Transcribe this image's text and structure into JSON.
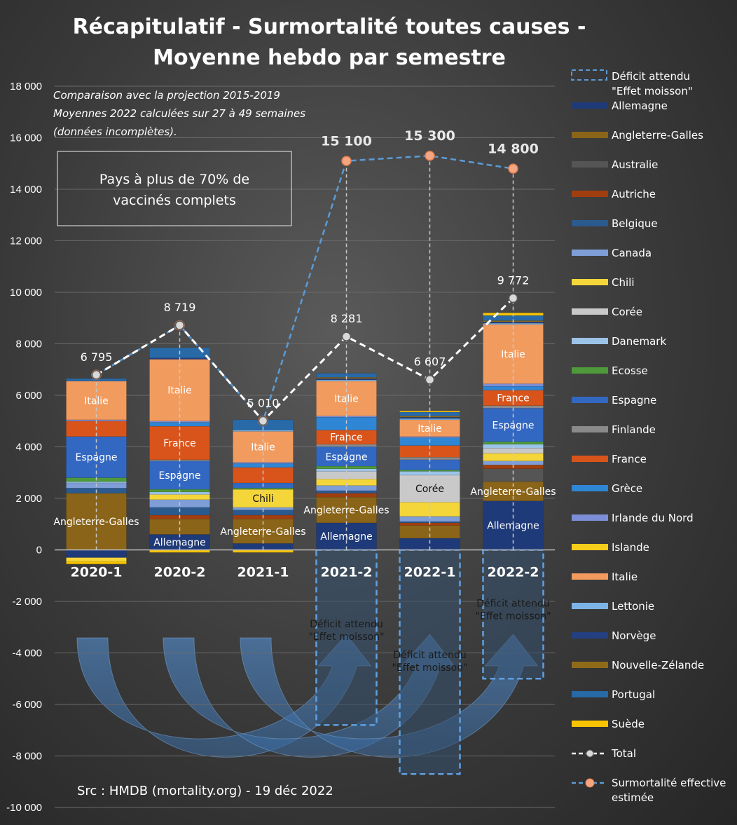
{
  "chart_data": {
    "type": "bar",
    "title": [
      "Récapitulatif - Surmortalité toutes causes -",
      "Moyenne hebdo par semestre"
    ],
    "note": [
      "Comparaison avec la projection 2015-2019",
      "Moyennes 2022 calculées sur 27 à 49 semaines",
      "(données incomplètes)."
    ],
    "box_text": [
      "Pays à plus de 70% de",
      "vaccinés complets"
    ],
    "source": "Src : HMDB (mortality.org) - 19 déc 2022",
    "ylim": [
      -10000,
      18000
    ],
    "yticks": [
      {
        "value": 18000,
        "label": "18 000"
      },
      {
        "value": 16000,
        "label": "16 000"
      },
      {
        "value": 14000,
        "label": "14 000"
      },
      {
        "value": 12000,
        "label": "12 000"
      },
      {
        "value": 10000,
        "label": "10 000"
      },
      {
        "value": 8000,
        "label": "8 000"
      },
      {
        "value": 6000,
        "label": "6 000"
      },
      {
        "value": 4000,
        "label": "4 000"
      },
      {
        "value": 2000,
        "label": "2 000"
      },
      {
        "value": 0,
        "label": "0"
      },
      {
        "value": -2000,
        "label": "-2 000"
      },
      {
        "value": -4000,
        "label": "-4 000"
      },
      {
        "value": -6000,
        "label": "-6 000"
      },
      {
        "value": -8000,
        "label": "-8 000"
      },
      {
        "value": -10000,
        "label": "-10 000"
      }
    ],
    "categories": [
      "2020-1",
      "2020-2",
      "2021-1",
      "2021-2",
      "2022-1",
      "2022-2"
    ],
    "colors": {
      "Allemagne": "#1f3a78",
      "Angleterre-Galles": "#8a6418",
      "Australie": "#555555",
      "Autriche": "#a13e0f",
      "Belgique": "#2b5a8f",
      "Canada": "#7f9ed8",
      "Chili": "#f5d63a",
      "Corée": "#c9c9c9",
      "Danemark": "#9cc3e8",
      "Ecosse": "#4e9a3a",
      "Espagne": "#3368c2",
      "Finlande": "#8a8a8a",
      "France": "#d9541a",
      "Grèce": "#2e86d4",
      "Irlande du Nord": "#7c8fd6",
      "Islande": "#f6cd1a",
      "Italie": "#f29b5e",
      "Lettonie": "#7cb4e6",
      "Norvège": "#243f82",
      "Nouvelle-Zélande": "#8f6a18",
      "Portugal": "#2869a8",
      "Suède": "#f8c400"
    },
    "series": [
      {
        "name": "Allemagne",
        "values": [
          -300,
          600,
          250,
          1050,
          450,
          1900
        ]
      },
      {
        "name": "Angleterre-Galles",
        "values": [
          2200,
          600,
          950,
          1000,
          500,
          750
        ]
      },
      {
        "name": "Australie",
        "values": [
          0,
          0,
          0,
          0,
          0,
          500
        ]
      },
      {
        "name": "Autriche",
        "values": [
          0,
          150,
          150,
          150,
          100,
          150
        ]
      },
      {
        "name": "Belgique",
        "values": [
          200,
          300,
          200,
          100,
          50,
          0
        ]
      },
      {
        "name": "Canada",
        "values": [
          200,
          300,
          100,
          200,
          200,
          150
        ]
      },
      {
        "name": "Chili",
        "values": [
          -150,
          200,
          700,
          250,
          550,
          300
        ]
      },
      {
        "name": "Corée",
        "values": [
          0,
          0,
          0,
          300,
          1050,
          200
        ]
      },
      {
        "name": "Danemark",
        "values": [
          50,
          100,
          0,
          100,
          150,
          150
        ]
      },
      {
        "name": "Ecosse",
        "values": [
          150,
          100,
          50,
          100,
          50,
          100
        ]
      },
      {
        "name": "Espagne",
        "values": [
          1600,
          1100,
          200,
          750,
          400,
          1300
        ]
      },
      {
        "name": "Finlande",
        "values": [
          0,
          50,
          0,
          100,
          100,
          100
        ]
      },
      {
        "name": "France",
        "values": [
          600,
          1300,
          600,
          550,
          450,
          600
        ]
      },
      {
        "name": "Grèce",
        "values": [
          0,
          150,
          150,
          500,
          300,
          150
        ]
      },
      {
        "name": "Irlande du Nord",
        "values": [
          50,
          50,
          50,
          50,
          50,
          100
        ]
      },
      {
        "name": "Islande",
        "values": [
          0,
          0,
          0,
          0,
          0,
          0
        ]
      },
      {
        "name": "Italie",
        "values": [
          1500,
          2400,
          1200,
          1350,
          650,
          2300
        ]
      },
      {
        "name": "Lettonie",
        "values": [
          0,
          0,
          50,
          50,
          50,
          50
        ]
      },
      {
        "name": "Norvège",
        "values": [
          0,
          50,
          0,
          50,
          50,
          50
        ]
      },
      {
        "name": "Nouvelle-Zélande",
        "values": [
          0,
          0,
          0,
          50,
          50,
          50
        ]
      },
      {
        "name": "Portugal",
        "values": [
          100,
          400,
          400,
          150,
          150,
          200
        ]
      },
      {
        "name": "Suède",
        "values": [
          -100,
          -100,
          -100,
          0,
          50,
          100
        ]
      }
    ],
    "segment_labels": [
      {
        "cat": 0,
        "series": "Angleterre-Galles",
        "text": "Angleterre-Galles"
      },
      {
        "cat": 0,
        "series": "Espagne",
        "text": "Espagne"
      },
      {
        "cat": 0,
        "series": "Italie",
        "text": "Italie"
      },
      {
        "cat": 1,
        "series": "Allemagne",
        "text": "Allemagne"
      },
      {
        "cat": 1,
        "series": "Espagne",
        "text": "Espagne"
      },
      {
        "cat": 1,
        "series": "France",
        "text": "France"
      },
      {
        "cat": 1,
        "series": "Italie",
        "text": "Italie"
      },
      {
        "cat": 2,
        "series": "Angleterre-Galles",
        "text": "Angleterre-Galles"
      },
      {
        "cat": 2,
        "series": "Chili",
        "text": "Chili"
      },
      {
        "cat": 2,
        "series": "Italie",
        "text": "Italie"
      },
      {
        "cat": 3,
        "series": "Allemagne",
        "text": "Allemagne"
      },
      {
        "cat": 3,
        "series": "Angleterre-Galles",
        "text": "Angleterre-Galles"
      },
      {
        "cat": 3,
        "series": "Espagne",
        "text": "Espagne"
      },
      {
        "cat": 3,
        "series": "France",
        "text": "France"
      },
      {
        "cat": 3,
        "series": "Italie",
        "text": "Italie"
      },
      {
        "cat": 4,
        "series": "Corée",
        "text": "Corée"
      },
      {
        "cat": 4,
        "series": "Italie",
        "text": "Italie"
      },
      {
        "cat": 5,
        "series": "Allemagne",
        "text": "Allemagne"
      },
      {
        "cat": 5,
        "series": "Angleterre-Galles",
        "text": "Angleterre-Galles"
      },
      {
        "cat": 5,
        "series": "Espagne",
        "text": "Espagne"
      },
      {
        "cat": 5,
        "series": "France",
        "text": "France"
      },
      {
        "cat": 5,
        "series": "Italie",
        "text": "Italie"
      }
    ],
    "deficit": {
      "name": "Déficit attendu \"Effet moisson\"",
      "values": [
        null,
        null,
        null,
        -6800,
        -8700,
        -5000
      ],
      "label": [
        "Déficit attendu",
        "\"Effet moisson\""
      ],
      "label_values": [
        null,
        null,
        null,
        -3000,
        -4200,
        -2200
      ]
    },
    "total": {
      "name": "Total",
      "values": [
        6795,
        8719,
        5010,
        8281,
        6607,
        9772
      ],
      "labels": [
        "6 795",
        "8 719",
        "5 010",
        "8 281",
        "6 607",
        "9 772"
      ]
    },
    "effective": {
      "name": "Surmortalité effective estimée",
      "values": [
        6795,
        8719,
        5010,
        15100,
        15300,
        14800
      ],
      "labels": [
        null,
        null,
        null,
        "15 100",
        "15 300",
        "14 800"
      ]
    },
    "legend": [
      {
        "name": "Déficit attendu \"Effet moisson\"",
        "lines": [
          "Déficit attendu",
          "\"Effet moisson\""
        ],
        "kind": "deficit"
      },
      {
        "name": "Allemagne",
        "lines": [
          "Allemagne"
        ],
        "kind": "swatch"
      },
      {
        "name": "Angleterre-Galles",
        "lines": [
          "Angleterre-Galles"
        ],
        "kind": "swatch"
      },
      {
        "name": "Australie",
        "lines": [
          "Australie"
        ],
        "kind": "swatch"
      },
      {
        "name": "Autriche",
        "lines": [
          "Autriche"
        ],
        "kind": "swatch"
      },
      {
        "name": "Belgique",
        "lines": [
          "Belgique"
        ],
        "kind": "swatch"
      },
      {
        "name": "Canada",
        "lines": [
          "Canada"
        ],
        "kind": "swatch"
      },
      {
        "name": "Chili",
        "lines": [
          "Chili"
        ],
        "kind": "swatch"
      },
      {
        "name": "Corée",
        "lines": [
          "Corée"
        ],
        "kind": "swatch"
      },
      {
        "name": "Danemark",
        "lines": [
          "Danemark"
        ],
        "kind": "swatch"
      },
      {
        "name": "Ecosse",
        "lines": [
          "Ecosse"
        ],
        "kind": "swatch"
      },
      {
        "name": "Espagne",
        "lines": [
          "Espagne"
        ],
        "kind": "swatch"
      },
      {
        "name": "Finlande",
        "lines": [
          "Finlande"
        ],
        "kind": "swatch"
      },
      {
        "name": "France",
        "lines": [
          "France"
        ],
        "kind": "swatch"
      },
      {
        "name": "Grèce",
        "lines": [
          "Grèce"
        ],
        "kind": "swatch"
      },
      {
        "name": "Irlande du Nord",
        "lines": [
          "Irlande du Nord"
        ],
        "kind": "swatch"
      },
      {
        "name": "Islande",
        "lines": [
          "Islande"
        ],
        "kind": "swatch"
      },
      {
        "name": "Italie",
        "lines": [
          "Italie"
        ],
        "kind": "swatch"
      },
      {
        "name": "Lettonie",
        "lines": [
          "Lettonie"
        ],
        "kind": "swatch"
      },
      {
        "name": "Norvège",
        "lines": [
          "Norvège"
        ],
        "kind": "swatch"
      },
      {
        "name": "Nouvelle-Zélande",
        "lines": [
          "Nouvelle-Zélande"
        ],
        "kind": "swatch"
      },
      {
        "name": "Portugal",
        "lines": [
          "Portugal"
        ],
        "kind": "swatch"
      },
      {
        "name": "Suède",
        "lines": [
          "Suède"
        ],
        "kind": "swatch"
      },
      {
        "name": "Total",
        "lines": [
          "Total"
        ],
        "kind": "total"
      },
      {
        "name": "Surmortalité effective estimée",
        "lines": [
          "Surmortalité effective",
          "estimée"
        ],
        "kind": "effective"
      }
    ]
  }
}
